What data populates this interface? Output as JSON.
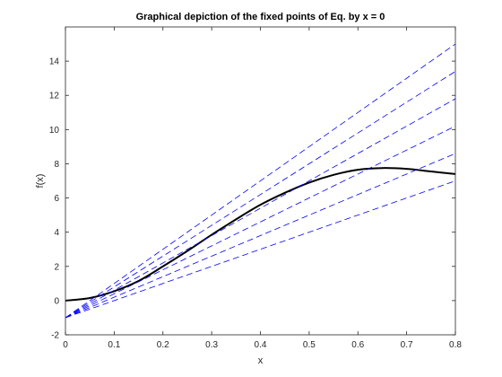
{
  "chart_data": {
    "type": "line",
    "title": "Graphical depiction of the fixed points of Eq. by x = 0",
    "xlabel": "x",
    "ylabel": "f(x)",
    "xlim": [
      0,
      0.8
    ],
    "ylim": [
      -2,
      16
    ],
    "xticks": [
      0,
      0.1,
      0.2,
      0.3,
      0.4,
      0.5,
      0.6,
      0.7,
      0.8
    ],
    "xtick_labels": [
      "0",
      "0.1",
      "0.2",
      "0.3",
      "0.4",
      "0.5",
      "0.6",
      "0.7",
      "0.8"
    ],
    "yticks": [
      -2,
      0,
      2,
      4,
      6,
      8,
      10,
      12,
      14
    ],
    "ytick_labels": [
      "-2",
      "0",
      "2",
      "4",
      "6",
      "8",
      "10",
      "12",
      "14"
    ],
    "grid": false,
    "series": [
      {
        "style": "solid",
        "color": "#000000",
        "x": [
          0,
          0.05,
          0.1,
          0.15,
          0.2,
          0.25,
          0.3,
          0.35,
          0.4,
          0.45,
          0.5,
          0.55,
          0.6,
          0.65,
          0.7,
          0.75,
          0.8
        ],
        "y": [
          0,
          0.15,
          0.55,
          1.15,
          2.0,
          2.9,
          3.85,
          4.75,
          5.6,
          6.3,
          6.9,
          7.35,
          7.65,
          7.75,
          7.7,
          7.55,
          7.4
        ]
      },
      {
        "style": "dashed",
        "color": "#0000ff",
        "x": [
          0.0,
          0.8
        ],
        "y": [
          -1.0,
          15.0
        ]
      },
      {
        "style": "dashed",
        "color": "#0000ff",
        "x": [
          0.0,
          0.8
        ],
        "y": [
          -1.0,
          13.4
        ]
      },
      {
        "style": "dashed",
        "color": "#0000ff",
        "x": [
          0.0,
          0.8
        ],
        "y": [
          -1.0,
          11.8
        ]
      },
      {
        "style": "dashed",
        "color": "#0000ff",
        "x": [
          0.0,
          0.8
        ],
        "y": [
          -1.0,
          10.2
        ]
      },
      {
        "style": "dashed",
        "color": "#0000ff",
        "x": [
          0.0,
          0.8
        ],
        "y": [
          -1.0,
          8.6
        ]
      },
      {
        "style": "dashed",
        "color": "#0000ff",
        "x": [
          0.0,
          0.8
        ],
        "y": [
          -1.0,
          7.0
        ]
      }
    ]
  }
}
